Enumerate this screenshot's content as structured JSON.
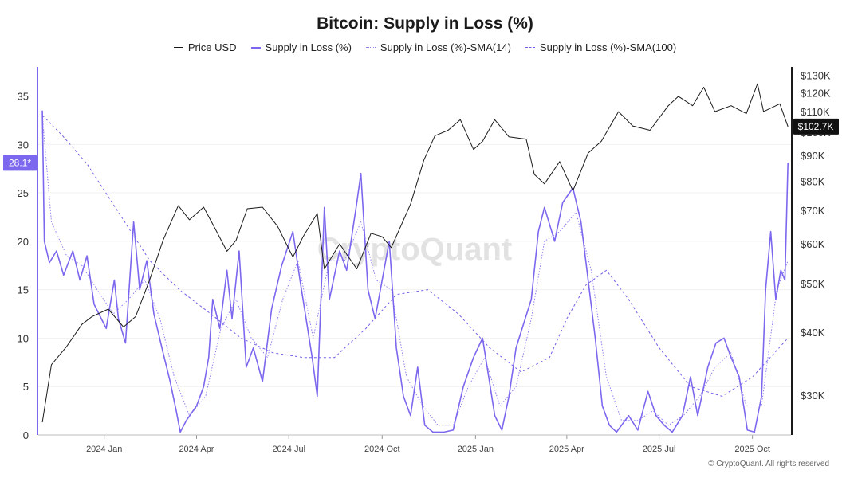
{
  "chart_data": {
    "type": "line",
    "title": "Bitcoin: Supply in Loss (%)",
    "footer": "© CryptoQuant. All rights reserved",
    "watermark": "CryptoQuant",
    "x_ticks": [
      "2024 Jan",
      "2024 Apr",
      "2024 Jul",
      "2024 Oct",
      "2025 Jan",
      "2025 Apr",
      "2025 Jul",
      "2025 Oct"
    ],
    "y_left": {
      "ticks": [
        "0",
        "5",
        "10",
        "15",
        "20",
        "25",
        "30",
        "35"
      ],
      "range": [
        0,
        38
      ]
    },
    "y_right": {
      "ticks": [
        "$30K",
        "$40K",
        "$50K",
        "$60K",
        "$70K",
        "$80K",
        "$90K",
        "$100K",
        "$110K",
        "$120K",
        "$130K"
      ],
      "scale": "log",
      "range": [
        25000,
        135000
      ]
    },
    "left_badge": "28.1*",
    "right_badge": "$102.7K",
    "legend": [
      "Price USD",
      "Supply in Loss (%)",
      "Supply in Loss (%)-SMA(14)",
      "Supply in Loss (%)-SMA(100)"
    ],
    "colors": {
      "price": "#1a1a1a",
      "loss": "#7b68ee",
      "sma14": "#8f7ff0",
      "sma100": "#7060e8"
    },
    "series": [
      {
        "name": "Price USD",
        "axis": "right",
        "points": [
          [
            "2023-11-01",
            26500
          ],
          [
            "2023-11-10",
            34500
          ],
          [
            "2023-11-25",
            37500
          ],
          [
            "2023-12-10",
            41500
          ],
          [
            "2023-12-20",
            43000
          ],
          [
            "2024-01-05",
            44500
          ],
          [
            "2024-01-20",
            41000
          ],
          [
            "2024-02-01",
            43000
          ],
          [
            "2024-02-15",
            51000
          ],
          [
            "2024-02-28",
            61000
          ],
          [
            "2024-03-14",
            71500
          ],
          [
            "2024-03-25",
            67000
          ],
          [
            "2024-04-08",
            71000
          ],
          [
            "2024-04-20",
            64000
          ],
          [
            "2024-05-01",
            58000
          ],
          [
            "2024-05-10",
            61000
          ],
          [
            "2024-05-21",
            70500
          ],
          [
            "2024-06-05",
            71000
          ],
          [
            "2024-06-20",
            65000
          ],
          [
            "2024-07-05",
            56500
          ],
          [
            "2024-07-15",
            62000
          ],
          [
            "2024-07-29",
            69000
          ],
          [
            "2024-08-05",
            53500
          ],
          [
            "2024-08-20",
            60000
          ],
          [
            "2024-09-06",
            53500
          ],
          [
            "2024-09-20",
            63000
          ],
          [
            "2024-10-01",
            62000
          ],
          [
            "2024-10-10",
            59000
          ],
          [
            "2024-10-29",
            72000
          ],
          [
            "2024-11-11",
            88000
          ],
          [
            "2024-11-22",
            98500
          ],
          [
            "2024-12-05",
            101000
          ],
          [
            "2024-12-17",
            106000
          ],
          [
            "2024-12-30",
            92500
          ],
          [
            "2025-01-08",
            96000
          ],
          [
            "2025-01-20",
            106000
          ],
          [
            "2025-02-03",
            98000
          ],
          [
            "2025-02-20",
            97000
          ],
          [
            "2025-02-28",
            82500
          ],
          [
            "2025-03-10",
            79000
          ],
          [
            "2025-03-25",
            87500
          ],
          [
            "2025-04-07",
            76500
          ],
          [
            "2025-04-22",
            91000
          ],
          [
            "2025-05-05",
            96000
          ],
          [
            "2025-05-22",
            110000
          ],
          [
            "2025-06-05",
            103000
          ],
          [
            "2025-06-22",
            101000
          ],
          [
            "2025-07-10",
            113000
          ],
          [
            "2025-07-20",
            118000
          ],
          [
            "2025-08-03",
            113000
          ],
          [
            "2025-08-14",
            123000
          ],
          [
            "2025-08-25",
            110000
          ],
          [
            "2025-09-10",
            113000
          ],
          [
            "2025-09-25",
            109000
          ],
          [
            "2025-10-06",
            125000
          ],
          [
            "2025-10-12",
            110000
          ],
          [
            "2025-10-28",
            114000
          ],
          [
            "2025-11-05",
            102700
          ]
        ]
      },
      {
        "name": "Supply in Loss (%)",
        "axis": "left",
        "points": [
          [
            "2023-11-01",
            33.5
          ],
          [
            "2023-11-03",
            20
          ],
          [
            "2023-11-08",
            17.8
          ],
          [
            "2023-11-15",
            19
          ],
          [
            "2023-11-22",
            16.5
          ],
          [
            "2023-12-01",
            19
          ],
          [
            "2023-12-08",
            16
          ],
          [
            "2023-12-15",
            18.5
          ],
          [
            "2023-12-22",
            13.5
          ],
          [
            "2024-01-03",
            11
          ],
          [
            "2024-01-11",
            16
          ],
          [
            "2024-01-15",
            12
          ],
          [
            "2024-01-22",
            9.5
          ],
          [
            "2024-01-30",
            22
          ],
          [
            "2024-02-05",
            15
          ],
          [
            "2024-02-12",
            18
          ],
          [
            "2024-02-19",
            12.5
          ],
          [
            "2024-02-28",
            8.5
          ],
          [
            "2024-03-06",
            5.5
          ],
          [
            "2024-03-12",
            2.5
          ],
          [
            "2024-03-16",
            0.3
          ],
          [
            "2024-03-22",
            1.5
          ],
          [
            "2024-04-01",
            3
          ],
          [
            "2024-04-08",
            5
          ],
          [
            "2024-04-13",
            8
          ],
          [
            "2024-04-17",
            14
          ],
          [
            "2024-04-24",
            11
          ],
          [
            "2024-05-01",
            17
          ],
          [
            "2024-05-06",
            12
          ],
          [
            "2024-05-13",
            19
          ],
          [
            "2024-05-20",
            7
          ],
          [
            "2024-05-27",
            9
          ],
          [
            "2024-06-05",
            5.5
          ],
          [
            "2024-06-14",
            13
          ],
          [
            "2024-06-24",
            17.5
          ],
          [
            "2024-07-05",
            21
          ],
          [
            "2024-07-12",
            16
          ],
          [
            "2024-07-18",
            12
          ],
          [
            "2024-07-24",
            8
          ],
          [
            "2024-07-29",
            4
          ],
          [
            "2024-08-05",
            23.5
          ],
          [
            "2024-08-10",
            14
          ],
          [
            "2024-08-20",
            19
          ],
          [
            "2024-08-27",
            17
          ],
          [
            "2024-09-06",
            24
          ],
          [
            "2024-09-10",
            27
          ],
          [
            "2024-09-17",
            15
          ],
          [
            "2024-09-24",
            12
          ],
          [
            "2024-10-01",
            16
          ],
          [
            "2024-10-08",
            20
          ],
          [
            "2024-10-15",
            9
          ],
          [
            "2024-10-22",
            4
          ],
          [
            "2024-10-29",
            2
          ],
          [
            "2024-11-05",
            7
          ],
          [
            "2024-11-12",
            1
          ],
          [
            "2024-11-20",
            0.3
          ],
          [
            "2024-12-01",
            0.3
          ],
          [
            "2024-12-10",
            0.5
          ],
          [
            "2024-12-20",
            5
          ],
          [
            "2024-12-30",
            8
          ],
          [
            "2025-01-08",
            10
          ],
          [
            "2025-01-14",
            6
          ],
          [
            "2025-01-20",
            2
          ],
          [
            "2025-01-27",
            0.5
          ],
          [
            "2025-02-03",
            4
          ],
          [
            "2025-02-10",
            9
          ],
          [
            "2025-02-25",
            14
          ],
          [
            "2025-03-04",
            21
          ],
          [
            "2025-03-10",
            23.5
          ],
          [
            "2025-03-20",
            20
          ],
          [
            "2025-03-28",
            24
          ],
          [
            "2025-04-07",
            25.5
          ],
          [
            "2025-04-15",
            22
          ],
          [
            "2025-04-22",
            16
          ],
          [
            "2025-04-29",
            10
          ],
          [
            "2025-05-06",
            3
          ],
          [
            "2025-05-13",
            1
          ],
          [
            "2025-05-20",
            0.3
          ],
          [
            "2025-06-01",
            2
          ],
          [
            "2025-06-10",
            0.5
          ],
          [
            "2025-06-20",
            4.5
          ],
          [
            "2025-06-28",
            2
          ],
          [
            "2025-07-06",
            1
          ],
          [
            "2025-07-14",
            0.3
          ],
          [
            "2025-07-24",
            2
          ],
          [
            "2025-08-01",
            6
          ],
          [
            "2025-08-08",
            2
          ],
          [
            "2025-08-18",
            7
          ],
          [
            "2025-08-26",
            9.5
          ],
          [
            "2025-09-03",
            10
          ],
          [
            "2025-09-10",
            8
          ],
          [
            "2025-09-18",
            6
          ],
          [
            "2025-09-26",
            0.5
          ],
          [
            "2025-10-03",
            0.3
          ],
          [
            "2025-10-10",
            4
          ],
          [
            "2025-10-14",
            15
          ],
          [
            "2025-10-19",
            21
          ],
          [
            "2025-10-24",
            14
          ],
          [
            "2025-10-29",
            17
          ],
          [
            "2025-11-02",
            16
          ],
          [
            "2025-11-05",
            28.1
          ]
        ]
      },
      {
        "name": "Supply in Loss (%)-SMA(14)",
        "axis": "left",
        "points": [
          [
            "2023-11-01",
            33
          ],
          [
            "2023-11-10",
            22
          ],
          [
            "2023-11-25",
            18.5
          ],
          [
            "2023-12-10",
            17.5
          ],
          [
            "2023-12-25",
            15
          ],
          [
            "2024-01-10",
            12.5
          ],
          [
            "2024-01-25",
            14
          ],
          [
            "2024-02-10",
            16
          ],
          [
            "2024-02-25",
            12
          ],
          [
            "2024-03-10",
            6
          ],
          [
            "2024-03-25",
            2
          ],
          [
            "2024-04-10",
            4
          ],
          [
            "2024-04-25",
            11
          ],
          [
            "2024-05-10",
            14
          ],
          [
            "2024-05-25",
            10
          ],
          [
            "2024-06-10",
            8
          ],
          [
            "2024-06-25",
            14
          ],
          [
            "2024-07-10",
            18
          ],
          [
            "2024-07-25",
            10
          ],
          [
            "2024-08-10",
            18
          ],
          [
            "2024-08-25",
            18
          ],
          [
            "2024-09-10",
            22
          ],
          [
            "2024-09-25",
            16
          ],
          [
            "2024-10-10",
            15
          ],
          [
            "2024-10-25",
            6
          ],
          [
            "2024-11-10",
            3
          ],
          [
            "2024-11-25",
            1
          ],
          [
            "2024-12-10",
            1
          ],
          [
            "2024-12-25",
            5
          ],
          [
            "2025-01-10",
            8
          ],
          [
            "2025-01-25",
            3
          ],
          [
            "2025-02-10",
            5
          ],
          [
            "2025-02-25",
            12
          ],
          [
            "2025-03-10",
            20
          ],
          [
            "2025-03-25",
            21
          ],
          [
            "2025-04-10",
            23
          ],
          [
            "2025-04-25",
            17
          ],
          [
            "2025-05-10",
            6
          ],
          [
            "2025-05-25",
            1.5
          ],
          [
            "2025-06-10",
            1.5
          ],
          [
            "2025-06-25",
            2.5
          ],
          [
            "2025-07-10",
            1
          ],
          [
            "2025-07-25",
            2
          ],
          [
            "2025-08-10",
            4
          ],
          [
            "2025-08-25",
            7
          ],
          [
            "2025-09-10",
            8.5
          ],
          [
            "2025-09-25",
            3
          ],
          [
            "2025-10-10",
            3
          ],
          [
            "2025-10-25",
            15
          ],
          [
            "2025-11-05",
            18
          ]
        ]
      },
      {
        "name": "Supply in Loss (%)-SMA(100)",
        "axis": "left",
        "points": [
          [
            "2023-11-01",
            33
          ],
          [
            "2023-11-20",
            31
          ],
          [
            "2023-12-15",
            28
          ],
          [
            "2024-01-15",
            23
          ],
          [
            "2024-02-15",
            18
          ],
          [
            "2024-03-15",
            15
          ],
          [
            "2024-04-15",
            12.5
          ],
          [
            "2024-05-15",
            10
          ],
          [
            "2024-06-15",
            8.5
          ],
          [
            "2024-07-15",
            8
          ],
          [
            "2024-08-15",
            8
          ],
          [
            "2024-09-15",
            11
          ],
          [
            "2024-10-15",
            14.5
          ],
          [
            "2024-11-15",
            15
          ],
          [
            "2024-12-15",
            12.5
          ],
          [
            "2025-01-15",
            9
          ],
          [
            "2025-02-15",
            6.5
          ],
          [
            "2025-03-15",
            8
          ],
          [
            "2025-04-01",
            12
          ],
          [
            "2025-04-20",
            15.5
          ],
          [
            "2025-05-10",
            17
          ],
          [
            "2025-06-01",
            14
          ],
          [
            "2025-07-01",
            9
          ],
          [
            "2025-08-01",
            5
          ],
          [
            "2025-09-01",
            4
          ],
          [
            "2025-10-01",
            6
          ],
          [
            "2025-11-05",
            10
          ]
        ]
      }
    ]
  }
}
